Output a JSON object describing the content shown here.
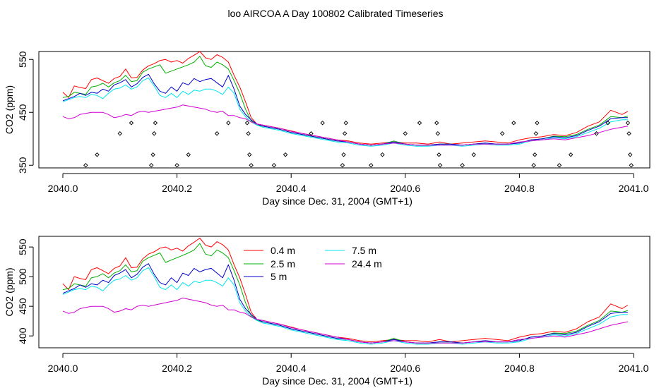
{
  "title": "loo AIRCOA A  Day 100802  Calibrated Timeseries",
  "colors": {
    "0.4 m": "#ff0000",
    "2.5 m": "#00b000",
    "5 m": "#0000cc",
    "7.5 m": "#00e5ee",
    "24.4 m": "#d000d0",
    "axis": "#000000"
  },
  "chart_data": [
    {
      "type": "line",
      "xlabel": "Day since Dec. 31, 2004 (GMT+1)",
      "ylabel": "CO2 (ppm)",
      "xlim": [
        2040.0,
        2041.0
      ],
      "ylim": [
        345,
        565
      ],
      "xticks": [
        2040.0,
        2040.2,
        2040.4,
        2040.6,
        2040.8,
        2041.0
      ],
      "xtick_labels": [
        "2040.0",
        "2040.2",
        "2040.4",
        "2040.6",
        "2040.8",
        "2041.0"
      ],
      "yticks": [
        350,
        450,
        550
      ],
      "ytick_labels": [
        "350",
        "450",
        "550"
      ],
      "legend": false,
      "x": [
        2040.0,
        2040.01,
        2040.02,
        2040.03,
        2040.04,
        2040.05,
        2040.06,
        2040.07,
        2040.08,
        2040.09,
        2040.1,
        2040.11,
        2040.12,
        2040.13,
        2040.14,
        2040.15,
        2040.16,
        2040.17,
        2040.18,
        2040.19,
        2040.2,
        2040.21,
        2040.22,
        2040.23,
        2040.24,
        2040.25,
        2040.26,
        2040.27,
        2040.28,
        2040.29,
        2040.3,
        2040.31,
        2040.32,
        2040.33,
        2040.34,
        2040.35,
        2040.36,
        2040.38,
        2040.4,
        2040.42,
        2040.44,
        2040.46,
        2040.48,
        2040.5,
        2040.52,
        2040.54,
        2040.56,
        2040.58,
        2040.6,
        2040.62,
        2040.64,
        2040.66,
        2040.68,
        2040.7,
        2040.72,
        2040.74,
        2040.76,
        2040.78,
        2040.8,
        2040.82,
        2040.84,
        2040.86,
        2040.88,
        2040.9,
        2040.92,
        2040.94,
        2040.96,
        2040.98,
        2040.99
      ],
      "series": [
        {
          "name": "0.4 m",
          "values": [
            488,
            478,
            500,
            497,
            495,
            512,
            515,
            510,
            505,
            514,
            518,
            532,
            515,
            516,
            530,
            538,
            542,
            548,
            550,
            545,
            548,
            543,
            552,
            558,
            565,
            553,
            550,
            559,
            554,
            545,
            520,
            498,
            470,
            440,
            428,
            426,
            424,
            420,
            415,
            410,
            406,
            402,
            398,
            396,
            392,
            390,
            392,
            394,
            392,
            392,
            390,
            394,
            390,
            392,
            394,
            396,
            394,
            392,
            398,
            402,
            404,
            408,
            406,
            412,
            424,
            432,
            454,
            446,
            452
          ]
        },
        {
          "name": "2.5 m",
          "values": [
            478,
            480,
            488,
            486,
            484,
            498,
            500,
            505,
            498,
            506,
            510,
            520,
            508,
            510,
            526,
            532,
            536,
            540,
            524,
            528,
            532,
            536,
            540,
            545,
            556,
            538,
            535,
            545,
            540,
            532,
            510,
            486,
            456,
            434,
            426,
            424,
            422,
            418,
            412,
            408,
            404,
            400,
            396,
            394,
            390,
            388,
            390,
            396,
            390,
            388,
            388,
            390,
            390,
            388,
            390,
            392,
            390,
            390,
            392,
            398,
            400,
            405,
            404,
            408,
            418,
            426,
            442,
            440,
            443
          ]
        },
        {
          "name": "5 m",
          "values": [
            472,
            476,
            480,
            486,
            482,
            488,
            486,
            494,
            490,
            502,
            506,
            512,
            498,
            504,
            516,
            522,
            504,
            490,
            486,
            498,
            490,
            506,
            502,
            514,
            508,
            512,
            514,
            506,
            498,
            520,
            494,
            462,
            446,
            436,
            428,
            424,
            422,
            418,
            412,
            408,
            404,
            400,
            396,
            394,
            390,
            388,
            390,
            394,
            390,
            388,
            388,
            390,
            390,
            388,
            390,
            392,
            390,
            390,
            392,
            398,
            400,
            404,
            402,
            406,
            416,
            424,
            438,
            440,
            440
          ]
        },
        {
          "name": "7.5 m",
          "values": [
            470,
            474,
            478,
            480,
            478,
            484,
            482,
            476,
            486,
            494,
            496,
            502,
            494,
            498,
            510,
            515,
            500,
            482,
            478,
            486,
            478,
            490,
            484,
            492,
            490,
            494,
            494,
            490,
            484,
            498,
            486,
            456,
            442,
            432,
            426,
            422,
            420,
            416,
            410,
            406,
            402,
            398,
            394,
            392,
            388,
            386,
            388,
            392,
            388,
            386,
            386,
            388,
            388,
            386,
            388,
            390,
            388,
            388,
            390,
            396,
            398,
            402,
            400,
            404,
            412,
            420,
            432,
            436,
            436
          ]
        },
        {
          "name": "24.4 m",
          "values": [
            442,
            438,
            440,
            446,
            448,
            450,
            450,
            450,
            446,
            440,
            442,
            446,
            444,
            450,
            452,
            450,
            452,
            454,
            456,
            458,
            460,
            464,
            462,
            460,
            458,
            456,
            452,
            450,
            452,
            444,
            444,
            440,
            438,
            432,
            428,
            426,
            424,
            420,
            414,
            410,
            406,
            402,
            398,
            394,
            390,
            388,
            390,
            392,
            390,
            388,
            388,
            388,
            388,
            388,
            390,
            390,
            390,
            390,
            394,
            396,
            398,
            400,
            398,
            402,
            406,
            412,
            418,
            422,
            424
          ]
        }
      ],
      "markers": {
        "shape": "diamond",
        "points": [
          [
            2040.04,
            350
          ],
          [
            2040.06,
            370
          ],
          [
            2040.1,
            410
          ],
          [
            2040.12,
            430
          ],
          [
            2040.155,
            350
          ],
          [
            2040.158,
            370
          ],
          [
            2040.16,
            410
          ],
          [
            2040.162,
            430
          ],
          [
            2040.2,
            350
          ],
          [
            2040.22,
            370
          ],
          [
            2040.27,
            410
          ],
          [
            2040.29,
            430
          ],
          [
            2040.323,
            430
          ],
          [
            2040.325,
            410
          ],
          [
            2040.327,
            370
          ],
          [
            2040.33,
            350
          ],
          [
            2040.37,
            350
          ],
          [
            2040.39,
            370
          ],
          [
            2040.435,
            410
          ],
          [
            2040.455,
            430
          ],
          [
            2040.49,
            350
          ],
          [
            2040.492,
            370
          ],
          [
            2040.494,
            410
          ],
          [
            2040.496,
            430
          ],
          [
            2040.54,
            350
          ],
          [
            2040.56,
            370
          ],
          [
            2040.6,
            410
          ],
          [
            2040.625,
            430
          ],
          [
            2040.655,
            430
          ],
          [
            2040.657,
            410
          ],
          [
            2040.659,
            370
          ],
          [
            2040.661,
            350
          ],
          [
            2040.7,
            350
          ],
          [
            2040.72,
            370
          ],
          [
            2040.77,
            410
          ],
          [
            2040.79,
            430
          ],
          [
            2040.825,
            350
          ],
          [
            2040.827,
            370
          ],
          [
            2040.829,
            410
          ],
          [
            2040.831,
            430
          ],
          [
            2040.87,
            350
          ],
          [
            2040.89,
            370
          ],
          [
            2040.935,
            410
          ],
          [
            2040.955,
            430
          ],
          [
            2040.99,
            430
          ],
          [
            2040.992,
            410
          ],
          [
            2040.994,
            370
          ],
          [
            2040.996,
            350
          ]
        ]
      }
    },
    {
      "type": "line",
      "xlabel": "Day since Dec. 31, 2004 (GMT+1)",
      "ylabel": "CO2 (ppm)",
      "xlim": [
        2040.0,
        2041.0
      ],
      "ylim": [
        380,
        568
      ],
      "xticks": [
        2040.0,
        2040.2,
        2040.4,
        2040.6,
        2040.8,
        2041.0
      ],
      "xtick_labels": [
        "2040.0",
        "2040.2",
        "2040.4",
        "2040.6",
        "2040.8",
        "2041.0"
      ],
      "yticks": [
        400,
        450,
        500,
        550
      ],
      "ytick_labels": [
        "400",
        "450",
        "500",
        "550"
      ],
      "legend": true,
      "legend_placement": "top-center",
      "legend_items": [
        "0.4 m",
        "2.5 m",
        "5 m",
        "7.5 m",
        "24.4 m"
      ],
      "x": [
        2040.0,
        2040.01,
        2040.02,
        2040.03,
        2040.04,
        2040.05,
        2040.06,
        2040.07,
        2040.08,
        2040.09,
        2040.1,
        2040.11,
        2040.12,
        2040.13,
        2040.14,
        2040.15,
        2040.16,
        2040.17,
        2040.18,
        2040.19,
        2040.2,
        2040.21,
        2040.22,
        2040.23,
        2040.24,
        2040.25,
        2040.26,
        2040.27,
        2040.28,
        2040.29,
        2040.3,
        2040.31,
        2040.32,
        2040.33,
        2040.34,
        2040.35,
        2040.36,
        2040.38,
        2040.4,
        2040.42,
        2040.44,
        2040.46,
        2040.48,
        2040.5,
        2040.52,
        2040.54,
        2040.56,
        2040.58,
        2040.6,
        2040.62,
        2040.64,
        2040.66,
        2040.68,
        2040.7,
        2040.72,
        2040.74,
        2040.76,
        2040.78,
        2040.8,
        2040.82,
        2040.84,
        2040.86,
        2040.88,
        2040.9,
        2040.92,
        2040.94,
        2040.96,
        2040.98,
        2040.99
      ],
      "series": [
        {
          "name": "0.4 m",
          "values": [
            488,
            478,
            500,
            497,
            495,
            512,
            515,
            510,
            505,
            514,
            518,
            532,
            515,
            516,
            530,
            538,
            542,
            548,
            550,
            545,
            548,
            543,
            552,
            558,
            565,
            553,
            550,
            559,
            554,
            545,
            520,
            498,
            470,
            440,
            428,
            426,
            424,
            420,
            415,
            410,
            406,
            402,
            398,
            396,
            392,
            390,
            392,
            394,
            392,
            392,
            390,
            394,
            390,
            392,
            394,
            396,
            394,
            392,
            398,
            402,
            404,
            408,
            406,
            412,
            424,
            432,
            454,
            446,
            452
          ]
        },
        {
          "name": "2.5 m",
          "values": [
            478,
            480,
            488,
            486,
            484,
            498,
            500,
            505,
            498,
            506,
            510,
            520,
            508,
            510,
            526,
            532,
            536,
            540,
            524,
            528,
            532,
            536,
            540,
            545,
            556,
            538,
            535,
            545,
            540,
            532,
            510,
            486,
            456,
            434,
            426,
            424,
            422,
            418,
            412,
            408,
            404,
            400,
            396,
            394,
            390,
            388,
            390,
            396,
            390,
            388,
            388,
            390,
            390,
            388,
            390,
            392,
            390,
            390,
            392,
            398,
            400,
            405,
            404,
            408,
            418,
            426,
            442,
            440,
            443
          ]
        },
        {
          "name": "5 m",
          "values": [
            472,
            476,
            480,
            486,
            482,
            488,
            486,
            494,
            490,
            502,
            506,
            512,
            498,
            504,
            516,
            522,
            504,
            490,
            486,
            498,
            490,
            506,
            502,
            514,
            508,
            512,
            514,
            506,
            498,
            520,
            494,
            462,
            446,
            436,
            428,
            424,
            422,
            418,
            412,
            408,
            404,
            400,
            396,
            394,
            390,
            388,
            390,
            394,
            390,
            388,
            388,
            390,
            390,
            388,
            390,
            392,
            390,
            390,
            392,
            398,
            400,
            404,
            402,
            406,
            416,
            424,
            438,
            440,
            440
          ]
        },
        {
          "name": "7.5 m",
          "values": [
            470,
            474,
            478,
            480,
            478,
            484,
            482,
            476,
            486,
            494,
            496,
            502,
            494,
            498,
            510,
            515,
            500,
            482,
            478,
            486,
            478,
            490,
            484,
            492,
            490,
            494,
            494,
            490,
            484,
            498,
            486,
            456,
            442,
            432,
            426,
            422,
            420,
            416,
            410,
            406,
            402,
            398,
            394,
            392,
            388,
            386,
            388,
            392,
            388,
            386,
            386,
            388,
            388,
            386,
            388,
            390,
            388,
            388,
            390,
            396,
            398,
            402,
            400,
            404,
            412,
            420,
            432,
            436,
            436
          ]
        },
        {
          "name": "24.4 m",
          "values": [
            442,
            438,
            440,
            446,
            448,
            450,
            450,
            450,
            446,
            440,
            442,
            446,
            444,
            450,
            452,
            450,
            452,
            454,
            456,
            458,
            460,
            464,
            462,
            460,
            458,
            456,
            452,
            450,
            452,
            444,
            444,
            440,
            438,
            432,
            428,
            426,
            424,
            420,
            414,
            410,
            406,
            402,
            398,
            394,
            390,
            388,
            390,
            392,
            390,
            388,
            388,
            388,
            388,
            388,
            390,
            390,
            390,
            390,
            394,
            396,
            398,
            400,
            398,
            402,
            406,
            412,
            418,
            422,
            424
          ]
        }
      ]
    }
  ]
}
